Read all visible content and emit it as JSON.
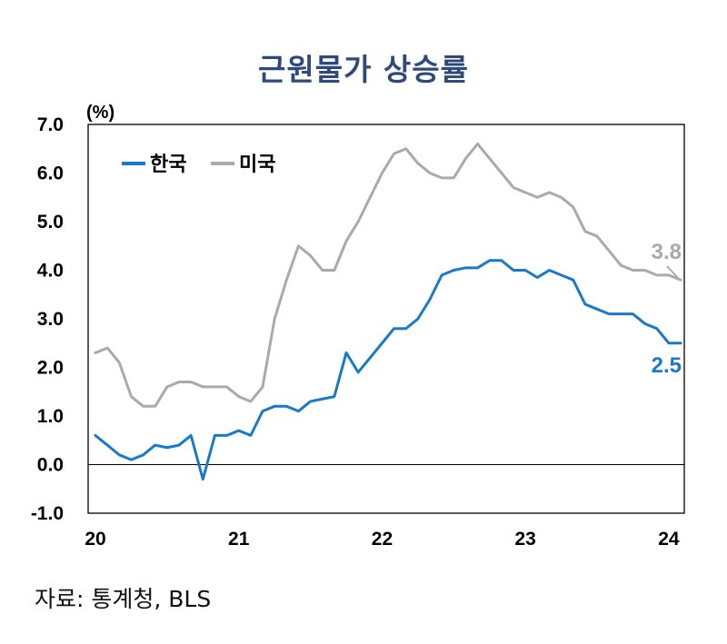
{
  "title": "근원물가 상승률",
  "source": "자료: 통계청, BLS",
  "colors": {
    "korea": "#1a7ac9",
    "us": "#aaaaaa",
    "title": "#2e4a7d",
    "axis": "#000000"
  },
  "chart_data": {
    "type": "line",
    "ylabel": "(%)",
    "ylim": [
      -1.0,
      7.0
    ],
    "xlim": [
      2020.0,
      2024.083
    ],
    "y_ticks": [
      "7.0",
      "6.0",
      "5.0",
      "4.0",
      "3.0",
      "2.0",
      "1.0",
      "0.0",
      "-1.0"
    ],
    "x_ticks": [
      {
        "value": 2020.0,
        "label": "20"
      },
      {
        "value": 2021.0,
        "label": "21"
      },
      {
        "value": 2022.0,
        "label": "22"
      },
      {
        "value": 2023.0,
        "label": "23"
      },
      {
        "value": 2024.0,
        "label": "24"
      }
    ],
    "legend_position": "top-left",
    "grid": false,
    "x_start": "2020-01",
    "x_step": "monthly",
    "series": [
      {
        "name": "한국",
        "color": "#1a7ac9",
        "end_label": "2.5",
        "values": [
          0.6,
          0.4,
          0.2,
          0.1,
          0.2,
          0.4,
          0.35,
          0.4,
          0.6,
          -0.3,
          0.6,
          0.6,
          0.7,
          0.6,
          1.1,
          1.2,
          1.2,
          1.1,
          1.3,
          1.35,
          1.4,
          2.3,
          1.9,
          2.2,
          2.5,
          2.8,
          2.8,
          3.0,
          3.4,
          3.9,
          4.0,
          4.05,
          4.05,
          4.2,
          4.2,
          4.0,
          4.0,
          3.85,
          4.0,
          3.9,
          3.8,
          3.3,
          3.2,
          3.1,
          3.1,
          3.1,
          2.9,
          2.8,
          2.5,
          2.5
        ]
      },
      {
        "name": "미국",
        "color": "#aaaaaa",
        "end_label": "3.8",
        "values": [
          2.3,
          2.4,
          2.1,
          1.4,
          1.2,
          1.2,
          1.6,
          1.7,
          1.7,
          1.6,
          1.6,
          1.6,
          1.4,
          1.3,
          1.6,
          3.0,
          3.8,
          4.5,
          4.3,
          4.0,
          4.0,
          4.6,
          5.0,
          5.5,
          6.0,
          6.4,
          6.5,
          6.2,
          6.0,
          5.9,
          5.9,
          6.3,
          6.6,
          6.3,
          6.0,
          5.7,
          5.6,
          5.5,
          5.6,
          5.5,
          5.3,
          4.8,
          4.7,
          4.4,
          4.1,
          4.0,
          4.0,
          3.9,
          3.9,
          3.8
        ]
      }
    ]
  }
}
